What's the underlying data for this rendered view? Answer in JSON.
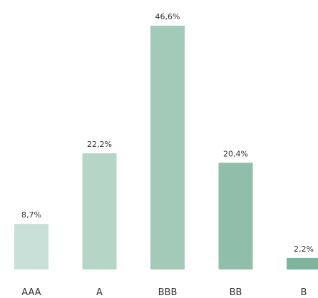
{
  "chart_data": {
    "type": "bar",
    "title": "",
    "xlabel": "",
    "ylabel": "",
    "ylim": [
      0,
      46.6
    ],
    "grid": false,
    "legend": "none",
    "categories": [
      "AAA",
      "A",
      "BBB",
      "BB",
      "B"
    ],
    "values": [
      8.7,
      22.2,
      46.6,
      20.4,
      2.2
    ],
    "data_labels": [
      "8,7%",
      "22,2%",
      "46,6%",
      "20,4%",
      "2,2%"
    ],
    "colors": [
      "#c9e0d8",
      "#b5d6c7",
      "#a3cab8",
      "#8fbfaa",
      "#7fb59c"
    ]
  }
}
